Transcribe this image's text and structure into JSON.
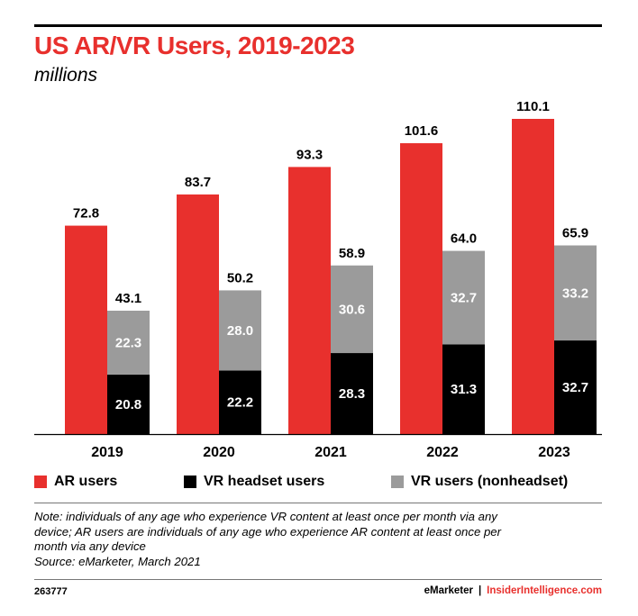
{
  "header": {
    "title": "US AR/VR Users, 2019-2023",
    "subtitle": "millions"
  },
  "colors": {
    "ar": "#e8302d",
    "vr_headset": "#000000",
    "vr_nonheadset": "#9b9b9b",
    "brand_red": "#e8302d"
  },
  "chart_data": {
    "type": "bar",
    "title": "US AR/VR Users, 2019-2023",
    "subtitle": "millions",
    "categories": [
      "2019",
      "2020",
      "2021",
      "2022",
      "2023"
    ],
    "series": [
      {
        "name": "AR users",
        "values": [
          72.8,
          83.7,
          93.3,
          101.6,
          110.1
        ]
      },
      {
        "name": "VR headset users",
        "values": [
          20.8,
          22.2,
          28.3,
          31.3,
          32.7
        ],
        "stack": "vr"
      },
      {
        "name": "VR users (nonheadset)",
        "values": [
          22.3,
          28.0,
          30.6,
          32.7,
          33.2
        ],
        "stack": "vr"
      }
    ],
    "vr_totals": [
      43.1,
      50.2,
      58.9,
      64.0,
      65.9
    ],
    "ylim": [
      0,
      110.1
    ],
    "grid": false,
    "legend_position": "bottom"
  },
  "legend": {
    "items": [
      {
        "label": "AR users",
        "color": "#e8302d"
      },
      {
        "label": "VR headset users",
        "color": "#000000"
      },
      {
        "label": "VR users (nonheadset)",
        "color": "#9b9b9b"
      }
    ]
  },
  "note": {
    "lines": [
      "Note: individuals of any age who experience VR content at least once per month via any",
      "device; AR users are individuals of any age who experience AR content at least once per",
      "month via any device",
      "Source: eMarketer, March 2021"
    ]
  },
  "footer": {
    "id": "263777",
    "brand_left": "eMarketer",
    "separator": "|",
    "brand_right": "InsiderIntelligence.com"
  }
}
